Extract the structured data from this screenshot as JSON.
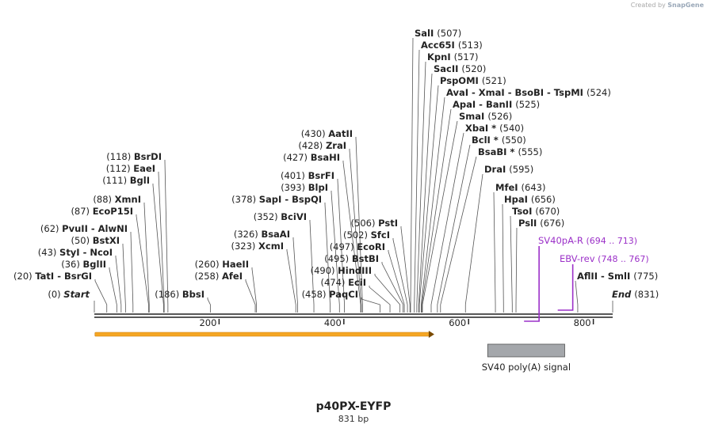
{
  "credit": {
    "prefix": "Created by",
    "brand": "SnapGene"
  },
  "title": "p40PX-EYFP",
  "subtitle": "831 bp",
  "total_bp": 831,
  "colors": {
    "primer": "#9b30c8",
    "feature_box": "#a4a7ab",
    "arrow": "#f5a623",
    "line": "#555555"
  },
  "ends": {
    "start": {
      "name": "Start",
      "pos": "(0)",
      "bp": 0
    },
    "end": {
      "name": "End",
      "pos": "(831)",
      "bp": 831
    }
  },
  "ruler": [
    "200",
    "400",
    "600",
    "800"
  ],
  "sites_left": [
    {
      "label": "BsrDI",
      "pos": "(118)",
      "bp": 118
    },
    {
      "label": "EaeI",
      "pos": "(112)",
      "bp": 112
    },
    {
      "label": "BglI",
      "pos": "(111)",
      "bp": 111
    },
    {
      "label": "XmnI",
      "pos": "(88)",
      "bp": 88
    },
    {
      "label": "EcoP15I",
      "pos": "(87)",
      "bp": 87
    },
    {
      "label": "PvuII  - AlwNI",
      "pos": "(62)",
      "bp": 62
    },
    {
      "label": "BstXI",
      "pos": "(50)",
      "bp": 50
    },
    {
      "label": "StyI  - NcoI",
      "pos": "(43)",
      "bp": 43
    },
    {
      "label": "BglII",
      "pos": "(36)",
      "bp": 36
    },
    {
      "label": "TatI  - BsrGI",
      "pos": "(20)",
      "bp": 20
    },
    {
      "label": "BbsI",
      "pos": "(186)",
      "bp": 186
    },
    {
      "label": "AatII",
      "pos": "(430)",
      "bp": 430
    },
    {
      "label": "ZraI",
      "pos": "(428)",
      "bp": 428
    },
    {
      "label": "BsaHI",
      "pos": "(427)",
      "bp": 427
    },
    {
      "label": "BsrFI",
      "pos": "(401)",
      "bp": 401
    },
    {
      "label": "BlpI",
      "pos": "(393)",
      "bp": 393
    },
    {
      "label": "SapI  - BspQI",
      "pos": "(378)",
      "bp": 378
    },
    {
      "label": "BciVI",
      "pos": "(352)",
      "bp": 352
    },
    {
      "label": "BsaAI",
      "pos": "(326)",
      "bp": 326
    },
    {
      "label": "XcmI",
      "pos": "(323)",
      "bp": 323
    },
    {
      "label": "HaeII",
      "pos": "(260)",
      "bp": 260
    },
    {
      "label": "AfeI",
      "pos": "(258)",
      "bp": 258
    },
    {
      "label": "PstI",
      "pos": "(506)",
      "bp": 506
    },
    {
      "label": "SfcI",
      "pos": "(502)",
      "bp": 502
    },
    {
      "label": "EcoRI",
      "pos": "(497)",
      "bp": 497
    },
    {
      "label": "BstBI",
      "pos": "(495)",
      "bp": 495
    },
    {
      "label": "HindIII",
      "pos": "(490)",
      "bp": 490
    },
    {
      "label": "EciI",
      "pos": "(474)",
      "bp": 474
    },
    {
      "label": "PaqCI",
      "pos": "(458)",
      "bp": 458
    }
  ],
  "sites_right": [
    {
      "label": "SalI",
      "pos": "(507)",
      "bp": 507
    },
    {
      "label": "Acc65I",
      "pos": "(513)",
      "bp": 513
    },
    {
      "label": "KpnI",
      "pos": "(517)",
      "bp": 517
    },
    {
      "label": "SacII",
      "pos": "(520)",
      "bp": 520
    },
    {
      "label": "PspOMI",
      "pos": "(521)",
      "bp": 521
    },
    {
      "label": "AvaI  - XmaI  - BsoBI  - TspMI",
      "pos": "(524)",
      "bp": 524
    },
    {
      "label": "ApaI  - BanII",
      "pos": "(525)",
      "bp": 525
    },
    {
      "label": "SmaI",
      "pos": "(526)",
      "bp": 526
    },
    {
      "label": "XbaI *",
      "pos": "(540)",
      "bp": 540
    },
    {
      "label": "BclI *",
      "pos": "(550)",
      "bp": 550
    },
    {
      "label": "BsaBI *",
      "pos": "(555)",
      "bp": 555
    },
    {
      "label": "DraI",
      "pos": "(595)",
      "bp": 595
    },
    {
      "label": "MfeI",
      "pos": "(643)",
      "bp": 643
    },
    {
      "label": "HpaI",
      "pos": "(656)",
      "bp": 656
    },
    {
      "label": "TsoI",
      "pos": "(670)",
      "bp": 670
    },
    {
      "label": "PslI",
      "pos": "(676)",
      "bp": 676
    },
    {
      "label": "AflII  - SmlI",
      "pos": "(775)",
      "bp": 775
    }
  ],
  "primers": [
    {
      "name": "SV40pA-R",
      "range": "(694 .. 713)",
      "start": 694,
      "end": 713,
      "dir": "reverse"
    },
    {
      "name": "EBV-rev",
      "range": "(748 .. 767)",
      "start": 748,
      "end": 767,
      "dir": "reverse"
    }
  ],
  "features": [
    {
      "name": "SV40 poly(A) signal",
      "start": 656,
      "end": 777
    },
    {
      "name": "",
      "start": 1,
      "end": 545,
      "type": "arrow"
    }
  ]
}
